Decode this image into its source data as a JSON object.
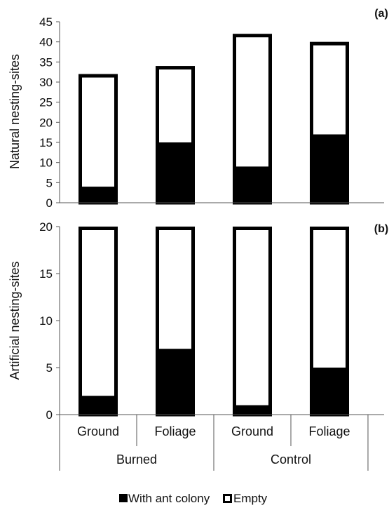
{
  "chart_data": [
    {
      "type": "bar",
      "stacked": true,
      "panel_label": "(a)",
      "ylabel": "Natural nesting-sites",
      "ylim": [
        0,
        45
      ],
      "yticks": [
        0,
        5,
        10,
        15,
        20,
        25,
        30,
        35,
        40,
        45
      ],
      "categories": [
        "Ground",
        "Foliage",
        "Ground",
        "Foliage"
      ],
      "groups": [
        "Burned",
        "Burned",
        "Control",
        "Control"
      ],
      "series": [
        {
          "name": "With ant colony",
          "color": "#000000",
          "values": [
            4,
            15,
            9,
            17
          ]
        },
        {
          "name": "Empty",
          "color": "#ffffff",
          "values": [
            28,
            19,
            33,
            23
          ]
        }
      ],
      "totals": [
        32,
        34,
        42,
        40
      ]
    },
    {
      "type": "bar",
      "stacked": true,
      "panel_label": "(b)",
      "ylabel": "Artificial nesting-sites",
      "ylim": [
        0,
        20
      ],
      "yticks": [
        0,
        5,
        10,
        15,
        20
      ],
      "categories": [
        "Ground",
        "Foliage",
        "Ground",
        "Foliage"
      ],
      "groups": [
        "Burned",
        "Burned",
        "Control",
        "Control"
      ],
      "series": [
        {
          "name": "With ant colony",
          "color": "#000000",
          "values": [
            2,
            7,
            1,
            5
          ]
        },
        {
          "name": "Empty",
          "color": "#ffffff",
          "values": [
            18,
            13,
            19,
            15
          ]
        }
      ],
      "totals": [
        20,
        20,
        20,
        20
      ]
    }
  ],
  "x_axis": {
    "categories": [
      "Ground",
      "Foliage",
      "Ground",
      "Foliage"
    ],
    "groups": [
      "Burned",
      "Control"
    ]
  },
  "legend": {
    "position": "bottom",
    "items": [
      {
        "label": "With ant colony",
        "color": "#000000",
        "swatch": "filled-square"
      },
      {
        "label": "Empty",
        "color": "#ffffff",
        "swatch": "outlined-square"
      }
    ]
  }
}
